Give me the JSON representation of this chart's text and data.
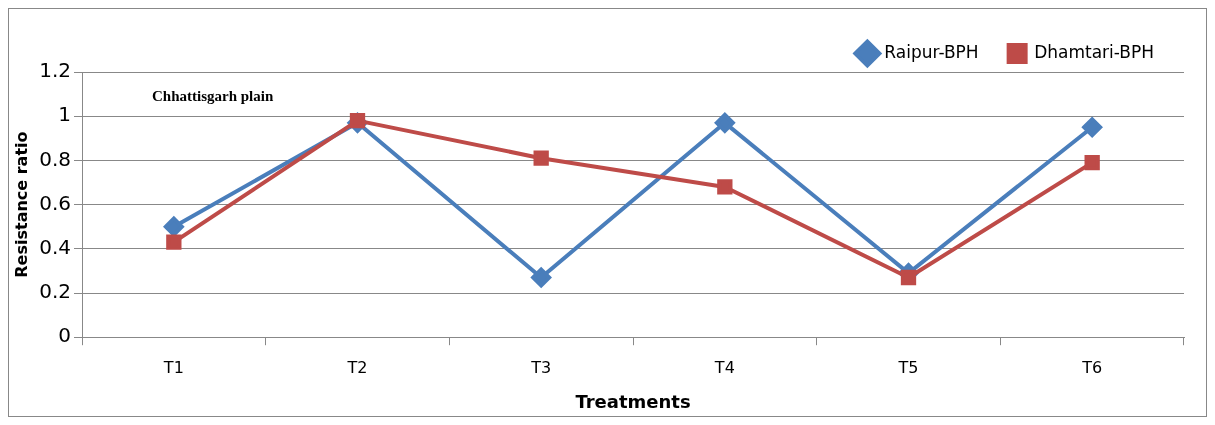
{
  "chart_data": {
    "type": "line",
    "xlabel": "Treatments",
    "ylabel": "Resistance ratio",
    "annotations": [
      "Chhattisgarh plain"
    ],
    "categories": [
      "T1",
      "T2",
      "T3",
      "T4",
      "T5",
      "T6"
    ],
    "series": [
      {
        "name": "Raipur-BPH",
        "color": "#4a7ebb",
        "marker": "diamond",
        "values": [
          0.5,
          0.97,
          0.27,
          0.97,
          0.29,
          0.95
        ]
      },
      {
        "name": "Dhamtari-BPH",
        "color": "#be4b48",
        "marker": "square",
        "values": [
          0.43,
          0.98,
          0.81,
          0.68,
          0.27,
          0.79
        ]
      }
    ],
    "ylim": [
      0,
      1.2
    ],
    "yticks": [
      0,
      0.2,
      0.4,
      0.6,
      0.8,
      1,
      1.2
    ],
    "grid": "y",
    "legend": "top right",
    "line_style": "solid"
  }
}
